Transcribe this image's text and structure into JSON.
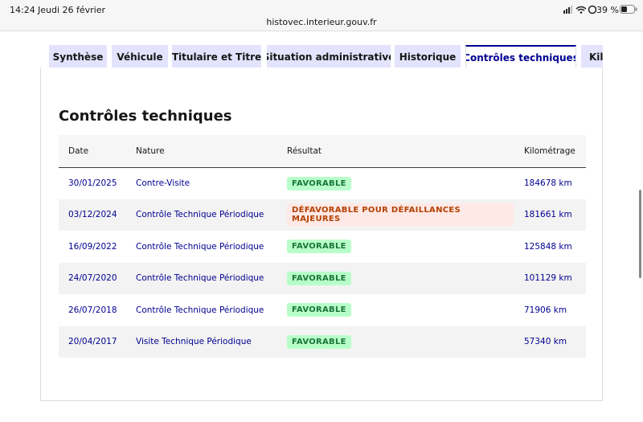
{
  "status_bar": {
    "time": "14:24",
    "date": "Jeudi 26 février",
    "battery": "39 %"
  },
  "browser": {
    "url": "histovec.interieur.gouv.fr"
  },
  "tabs": [
    "Synthèse",
    "Véhicule",
    "Titulaire et Titre",
    "Situation administrative",
    "Historique",
    "Contrôles techniques",
    "Kil"
  ],
  "section": {
    "title": "Contrôles techniques"
  },
  "table": {
    "headers": [
      "Date",
      "Nature",
      "Résultat",
      "Kilométrage"
    ],
    "rows": [
      [
        "30/01/2025",
        "Contre-Visite",
        "FAVORABLE",
        "184678 km"
      ],
      [
        "03/12/2024",
        "Contrôle Technique Périodique",
        "DÉFAVORABLE POUR DÉFAILLANCES MAJEURES",
        "181661 km"
      ],
      [
        "16/09/2022",
        "Contrôle Technique Périodique",
        "FAVORABLE",
        "125848 km"
      ],
      [
        "24/07/2020",
        "Contrôle Technique Périodique",
        "FAVORABLE",
        "101129 km"
      ],
      [
        "26/07/2018",
        "Contrôle Technique Périodique",
        "FAVORABLE",
        "71906 km"
      ],
      [
        "20/04/2017",
        "Visite Technique Périodique",
        "FAVORABLE",
        "57340 km"
      ]
    ]
  }
}
